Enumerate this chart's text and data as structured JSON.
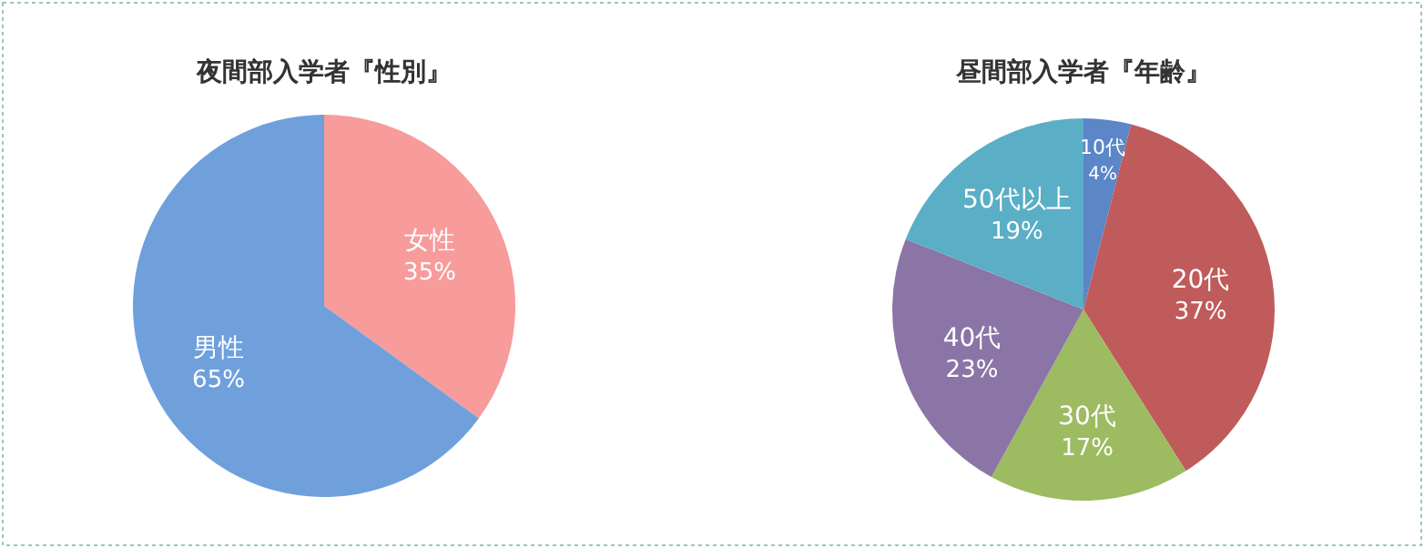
{
  "chart_data": [
    {
      "type": "pie",
      "title": "夜間部入学者『性別』",
      "categories": [
        "女性",
        "男性"
      ],
      "values": [
        35,
        65
      ],
      "colors": [
        "#f79b9b",
        "#6fa0dc"
      ],
      "value_labels": [
        "35%",
        "65%"
      ]
    },
    {
      "type": "pie",
      "title": "昼間部入学者『年齢』",
      "categories": [
        "10代",
        "20代",
        "30代",
        "40代",
        "50代以上"
      ],
      "values": [
        4,
        37,
        17,
        23,
        19
      ],
      "colors": [
        "#5b86c8",
        "#c05b5b",
        "#9dbb61",
        "#8b74a6",
        "#5aaec6"
      ],
      "value_labels": [
        "4%",
        "37%",
        "17%",
        "23%",
        "19%"
      ]
    }
  ]
}
